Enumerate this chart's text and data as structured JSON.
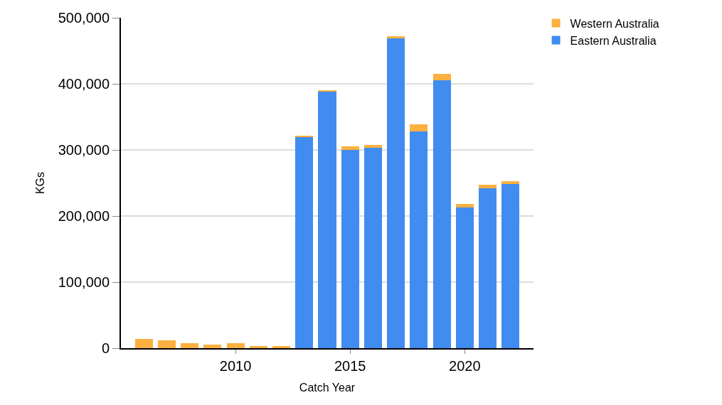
{
  "chart_data": {
    "type": "bar",
    "stacked": true,
    "xlabel": "Catch Year",
    "ylabel": "KGs",
    "x": [
      2006,
      2007,
      2008,
      2009,
      2010,
      2011,
      2012,
      2013,
      2014,
      2015,
      2016,
      2017,
      2018,
      2019,
      2020,
      2021,
      2022
    ],
    "series": [
      {
        "name": "Eastern Australia",
        "color": "#418cf0",
        "values": [
          0,
          0,
          0,
          0,
          0,
          0,
          0,
          319000,
          388000,
          300000,
          303000,
          469000,
          328000,
          405000,
          212500,
          241500,
          248000
        ]
      },
      {
        "name": "Western Australia",
        "color": "#fbb040",
        "values": [
          14000,
          11500,
          7000,
          5000,
          8000,
          3000,
          3500,
          2500,
          2500,
          5000,
          5000,
          3000,
          10500,
          10000,
          6000,
          6000,
          4500
        ]
      }
    ],
    "xlim": [
      2005,
      2023
    ],
    "xticks": [
      2010,
      2015,
      2020
    ],
    "ylim": [
      0,
      500000
    ],
    "yticks": [
      {
        "value": 0,
        "label": "0"
      },
      {
        "value": 100000,
        "label": "100,000"
      },
      {
        "value": 200000,
        "label": "200,000"
      },
      {
        "value": 300000,
        "label": "300,000"
      },
      {
        "value": 400000,
        "label": "400,000"
      },
      {
        "value": 500000,
        "label": "500,000"
      }
    ],
    "grid": "y",
    "legend": "top right"
  }
}
